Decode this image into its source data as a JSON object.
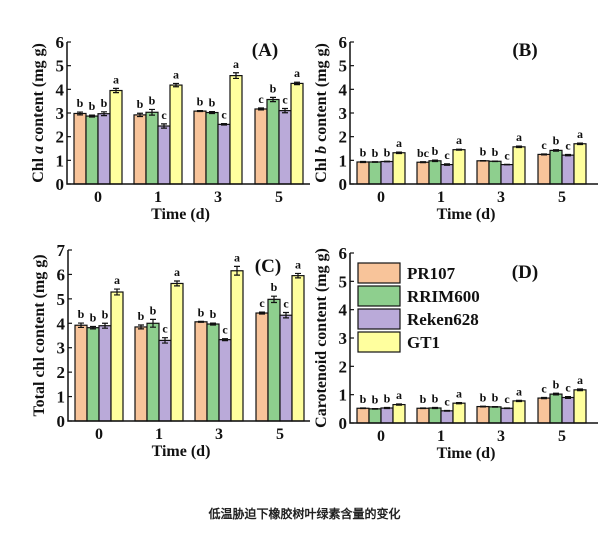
{
  "caption": "低温胁迫下橡胶树叶绿素含量的变化",
  "chart_data": [
    {
      "type": "bar",
      "panel": "(A)",
      "ylabel": {
        "prefix": "Chl ",
        "italic": "a",
        "suffix": " content (mg g)"
      },
      "xlabel": "Time (d)",
      "categories": [
        "0",
        "1",
        "3",
        "5"
      ],
      "ylim": [
        0,
        6
      ],
      "yticks": [
        0,
        1,
        2,
        3,
        4,
        5,
        6
      ],
      "series": [
        {
          "name": "PR107",
          "values": [
            2.98,
            2.92,
            3.08,
            3.17
          ],
          "errors": [
            0.06,
            0.07,
            0.02,
            0.04
          ],
          "letters": [
            "b",
            "b",
            "b",
            "c"
          ]
        },
        {
          "name": "RRIM600",
          "values": [
            2.87,
            3.03,
            3.02,
            3.57
          ],
          "errors": [
            0.04,
            0.12,
            0.04,
            0.09
          ],
          "letters": [
            "b",
            "b",
            "b",
            "b"
          ]
        },
        {
          "name": "Reken628",
          "values": [
            2.97,
            2.45,
            2.52,
            3.1
          ],
          "errors": [
            0.08,
            0.09,
            0.03,
            0.09
          ],
          "letters": [
            "b",
            "c",
            "c",
            "c"
          ]
        },
        {
          "name": "GT1",
          "values": [
            3.95,
            4.18,
            4.58,
            4.25
          ],
          "errors": [
            0.09,
            0.07,
            0.12,
            0.05
          ],
          "letters": [
            "a",
            "a",
            "a",
            "a"
          ]
        }
      ]
    },
    {
      "type": "bar",
      "panel": "(B)",
      "ylabel": {
        "prefix": "Chl ",
        "italic": "b",
        "suffix": " content (mg g)"
      },
      "xlabel": "Time (d)",
      "categories": [
        "0",
        "1",
        "3",
        "5"
      ],
      "ylim": [
        0,
        6
      ],
      "yticks": [
        0,
        1,
        2,
        3,
        4,
        5,
        6
      ],
      "series": [
        {
          "name": "PR107",
          "values": [
            0.93,
            0.92,
            0.98,
            1.25
          ],
          "errors": [
            0.02,
            0.02,
            0.01,
            0.02
          ],
          "letters": [
            "b",
            "bc",
            "b",
            "c"
          ]
        },
        {
          "name": "RRIM600",
          "values": [
            0.93,
            0.98,
            0.96,
            1.42
          ],
          "errors": [
            0.01,
            0.03,
            0.01,
            0.03
          ],
          "letters": [
            "b",
            "b",
            "b",
            "b"
          ]
        },
        {
          "name": "Reken628",
          "values": [
            0.95,
            0.82,
            0.82,
            1.22
          ],
          "errors": [
            0.01,
            0.03,
            0.01,
            0.03
          ],
          "letters": [
            "b",
            "c",
            "c",
            "c"
          ]
        },
        {
          "name": "GT1",
          "values": [
            1.32,
            1.45,
            1.57,
            1.7
          ],
          "errors": [
            0.03,
            0.02,
            0.03,
            0.03
          ],
          "letters": [
            "a",
            "a",
            "a",
            "a"
          ]
        }
      ]
    },
    {
      "type": "bar",
      "panel": "(C)",
      "ylabel": {
        "prefix": "Total chl content (mg g)",
        "italic": "",
        "suffix": ""
      },
      "xlabel": "Time (d)",
      "categories": [
        "0",
        "1",
        "3",
        "5"
      ],
      "ylim": [
        0,
        7
      ],
      "yticks": [
        0,
        1,
        2,
        3,
        4,
        5,
        6,
        7
      ],
      "series": [
        {
          "name": "PR107",
          "values": [
            3.92,
            3.85,
            4.06,
            4.42
          ],
          "errors": [
            0.09,
            0.08,
            0.02,
            0.04
          ],
          "letters": [
            "b",
            "b",
            "b",
            "c"
          ]
        },
        {
          "name": "RRIM600",
          "values": [
            3.82,
            4.0,
            3.97,
            4.98
          ],
          "errors": [
            0.05,
            0.16,
            0.04,
            0.13
          ],
          "letters": [
            "b",
            "b",
            "b",
            "b"
          ]
        },
        {
          "name": "Reken628",
          "values": [
            3.9,
            3.3,
            3.33,
            4.33
          ],
          "errors": [
            0.1,
            0.11,
            0.04,
            0.11
          ],
          "letters": [
            "b",
            "c",
            "c",
            "c"
          ]
        },
        {
          "name": "GT1",
          "values": [
            5.28,
            5.63,
            6.15,
            5.95
          ],
          "errors": [
            0.12,
            0.1,
            0.18,
            0.09
          ],
          "letters": [
            "a",
            "a",
            "a",
            "a"
          ]
        }
      ]
    },
    {
      "type": "bar",
      "panel": "(D)",
      "ylabel": {
        "prefix": "Carotenoid content (mg g)",
        "italic": "",
        "suffix": ""
      },
      "xlabel": "Time (d)",
      "categories": [
        "0",
        "1",
        "3",
        "5"
      ],
      "ylim": [
        0,
        6
      ],
      "yticks": [
        0,
        1,
        2,
        3,
        4,
        5,
        6
      ],
      "legend": "top-left",
      "series": [
        {
          "name": "PR107",
          "values": [
            0.52,
            0.52,
            0.58,
            0.88
          ],
          "errors": [
            0.01,
            0.01,
            0.01,
            0.02
          ],
          "letters": [
            "b",
            "b",
            "b",
            "c"
          ]
        },
        {
          "name": "RRIM600",
          "values": [
            0.5,
            0.53,
            0.57,
            1.02
          ],
          "errors": [
            0.01,
            0.02,
            0.01,
            0.03
          ],
          "letters": [
            "b",
            "b",
            "b",
            "b"
          ]
        },
        {
          "name": "Reken628",
          "values": [
            0.53,
            0.43,
            0.52,
            0.9
          ],
          "errors": [
            0.02,
            0.01,
            0.01,
            0.03
          ],
          "letters": [
            "b",
            "c",
            "c",
            "c"
          ]
        },
        {
          "name": "GT1",
          "values": [
            0.65,
            0.7,
            0.78,
            1.17
          ],
          "errors": [
            0.02,
            0.02,
            0.02,
            0.03
          ],
          "letters": [
            "a",
            "a",
            "a",
            "a"
          ]
        }
      ]
    }
  ],
  "colors": {
    "PR107": "#F8C49A",
    "RRIM600": "#8ECF8E",
    "Reken628": "#BAAAD9",
    "GT1": "#FFFF9E"
  }
}
